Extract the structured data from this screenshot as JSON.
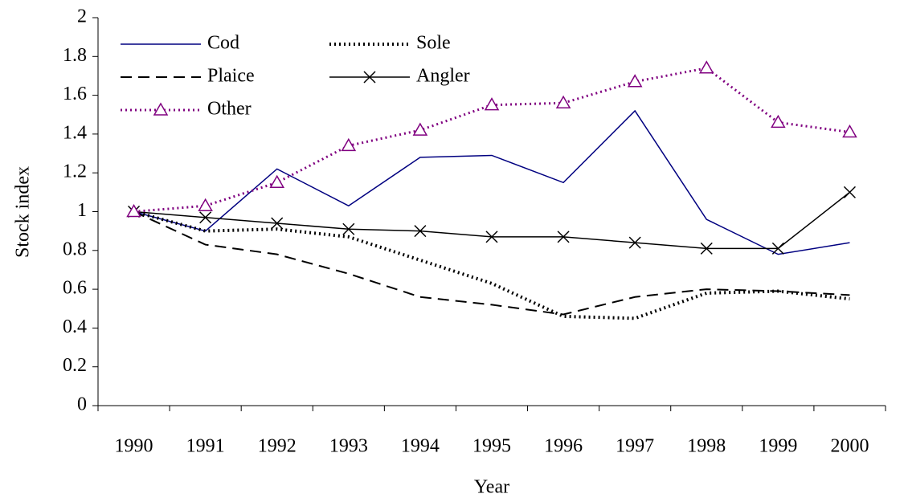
{
  "chart_data": {
    "type": "line",
    "xlabel": "Year",
    "ylabel": "Stock index",
    "categories": [
      "1990",
      "1991",
      "1992",
      "1993",
      "1994",
      "1995",
      "1996",
      "1997",
      "1998",
      "1999",
      "2000"
    ],
    "ylim": [
      0,
      2
    ],
    "yticks": [
      0,
      0.2,
      0.4,
      0.6,
      0.8,
      1,
      1.2,
      1.4,
      1.6,
      1.8,
      2
    ],
    "legend": "upper left",
    "series": [
      {
        "name": "Cod",
        "color": "#000080",
        "dash": "none",
        "width": 1.5,
        "marker": "none",
        "values": [
          1,
          0.9,
          1.22,
          1.03,
          1.28,
          1.29,
          1.15,
          1.52,
          0.96,
          0.78,
          0.84
        ]
      },
      {
        "name": "Sole",
        "color": "#000000",
        "dash": "2 4",
        "width": 4,
        "marker": "none",
        "values": [
          1,
          0.9,
          0.91,
          0.87,
          0.75,
          0.63,
          0.46,
          0.45,
          0.58,
          0.59,
          0.55
        ]
      },
      {
        "name": "Plaice",
        "color": "#000000",
        "dash": "14 8",
        "width": 2,
        "marker": "none",
        "values": [
          1,
          0.83,
          0.78,
          0.68,
          0.56,
          0.52,
          0.47,
          0.56,
          0.6,
          0.59,
          0.57
        ]
      },
      {
        "name": "Angler",
        "color": "#000000",
        "dash": "none",
        "width": 1.5,
        "marker": "x",
        "values": [
          1,
          0.97,
          0.94,
          0.91,
          0.9,
          0.87,
          0.87,
          0.84,
          0.81,
          0.81,
          1.1
        ]
      },
      {
        "name": "Other",
        "color": "#800080",
        "dash": "2 4",
        "width": 3,
        "marker": "triangle",
        "values": [
          1,
          1.03,
          1.15,
          1.34,
          1.42,
          1.55,
          1.56,
          1.67,
          1.74,
          1.46,
          1.41
        ]
      }
    ]
  }
}
